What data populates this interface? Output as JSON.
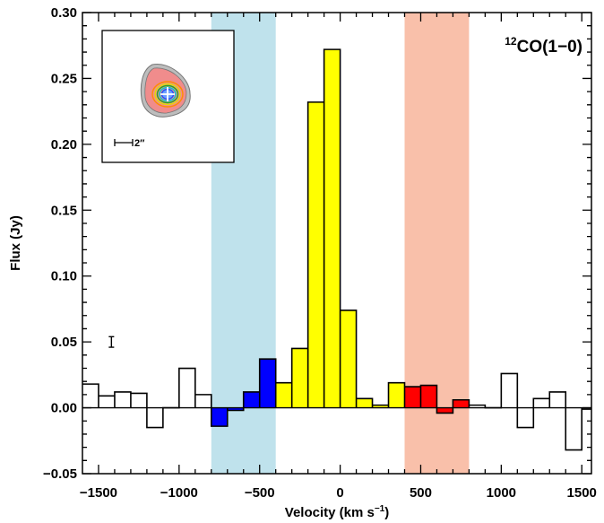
{
  "chart_data": {
    "type": "bar",
    "line_label": {
      "superscript": "12",
      "text": "CO(1−0)"
    },
    "xlabel": {
      "text": "Velocity (km s",
      "superscript": "−1",
      "close": ")"
    },
    "ylabel": "Flux (Jy)",
    "xlim": [
      -1600,
      1560
    ],
    "ylim": [
      -0.05,
      0.3
    ],
    "xticks": [
      -1500,
      -1000,
      -500,
      0,
      500,
      1000,
      1500
    ],
    "xtick_labels": [
      "−1500",
      "−1000",
      "−500",
      "0",
      "500",
      "1000",
      "1500"
    ],
    "yticks": [
      -0.05,
      0.0,
      0.05,
      0.1,
      0.15,
      0.2,
      0.25,
      0.3
    ],
    "ytick_labels": [
      "−0.05",
      "0.00",
      "0.05",
      "0.10",
      "0.15",
      "0.20",
      "0.25",
      "0.30"
    ],
    "bin_width": 100,
    "bin_start": -1600,
    "values": [
      0.018,
      0.009,
      0.012,
      0.011,
      -0.015,
      0.0,
      0.03,
      0.01,
      -0.014,
      -0.002,
      0.012,
      0.037,
      0.019,
      0.045,
      0.232,
      0.272,
      0.074,
      0.007,
      0.002,
      0.019,
      0.016,
      0.017,
      -0.004,
      0.006,
      0.002,
      0.0,
      0.026,
      -0.015,
      0.007,
      0.012,
      -0.032,
      -0.001
    ],
    "shaded_regions": [
      {
        "range": [
          -800,
          -400
        ],
        "color": "#bfe2ec"
      },
      {
        "range": [
          400,
          800
        ],
        "color": "#f9c0aa"
      }
    ],
    "filled_segments": [
      {
        "range": [
          -800,
          -400
        ],
        "color": "#0000ff"
      },
      {
        "range": [
          -400,
          300
        ],
        "color": "#ffff00"
      },
      {
        "range": [
          300,
          400
        ],
        "color": "#ffff00"
      },
      {
        "range": [
          400,
          800
        ],
        "color": "#ff0000"
      }
    ],
    "error_bar": {
      "x": -1420,
      "y": 0.05,
      "err": 0.004
    },
    "zero_line": true,
    "inset": {
      "scale_label": "2″"
    }
  }
}
